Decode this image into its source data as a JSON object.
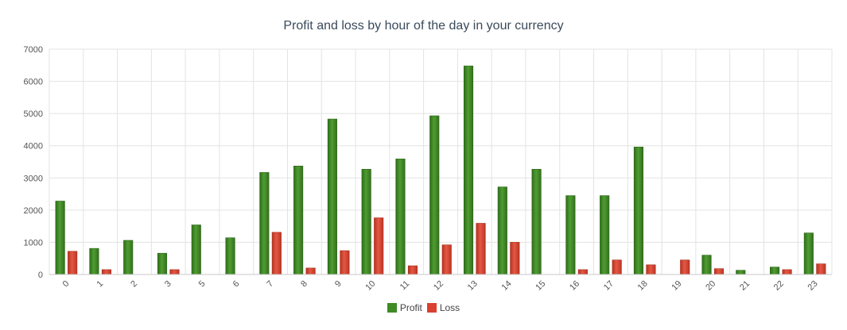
{
  "chart_data": {
    "type": "bar",
    "title": "Profit and loss by hour of the day in your currency",
    "xlabel": "",
    "ylabel": "",
    "ylim": [
      0,
      7000
    ],
    "yticks": [
      "0",
      "1000",
      "2000",
      "3000",
      "4000",
      "5000",
      "6000",
      "7000"
    ],
    "grid": true,
    "legend_position": "bottom",
    "categories": [
      "0",
      "1",
      "2",
      "3",
      "5",
      "6",
      "7",
      "8",
      "9",
      "10",
      "11",
      "12",
      "13",
      "14",
      "15",
      "16",
      "17",
      "18",
      "19",
      "20",
      "21",
      "22",
      "23"
    ],
    "series": [
      {
        "name": "Profit",
        "color": "#3f8b25",
        "values": [
          2280,
          810,
          1060,
          660,
          1540,
          1140,
          3170,
          3370,
          4830,
          3270,
          3590,
          4930,
          6480,
          2720,
          3270,
          2450,
          2450,
          3960,
          0,
          600,
          130,
          230,
          1290
        ]
      },
      {
        "name": "Loss",
        "color": "#d9402f",
        "values": [
          720,
          150,
          0,
          150,
          0,
          0,
          1310,
          200,
          740,
          1760,
          270,
          920,
          1590,
          1000,
          0,
          150,
          450,
          300,
          450,
          180,
          0,
          150,
          330
        ]
      }
    ]
  }
}
